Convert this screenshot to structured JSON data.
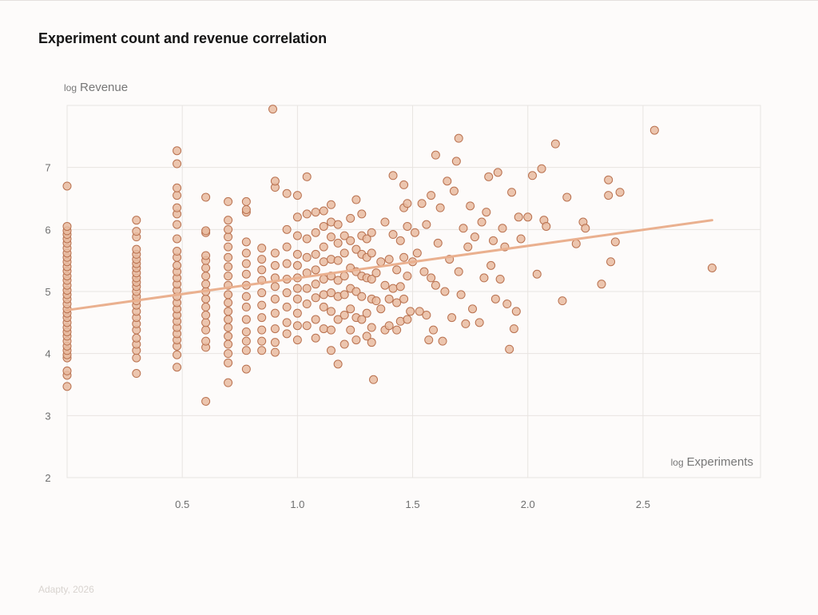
{
  "title": "Experiment count and revenue correlation",
  "footer": "Adapty, 2026",
  "colors": {
    "point_fill": "#e9bba0",
    "point_stroke": "#b9714f",
    "trend": "#eab08f",
    "grid": "#e8e4e1"
  },
  "chart_data": {
    "type": "scatter",
    "title": "Experiment count and revenue correlation",
    "xlabel_prefix": "log",
    "xlabel": "Experiments",
    "ylabel_prefix": "log",
    "ylabel": "Revenue",
    "xlim": [
      0,
      3.0
    ],
    "ylim": [
      2,
      8
    ],
    "xticks": [
      "0.5",
      "1.0",
      "1.5",
      "2.0",
      "2.5"
    ],
    "xtick_values": [
      0.5,
      1.0,
      1.5,
      2.0,
      2.5
    ],
    "yticks": [
      "2",
      "3",
      "4",
      "5",
      "6",
      "7"
    ],
    "ytick_values": [
      2,
      3,
      4,
      5,
      6,
      7
    ],
    "grid": true,
    "trend_line": {
      "x": [
        0,
        2.8
      ],
      "y": [
        4.7,
        6.15
      ]
    },
    "points": [
      [
        0,
        3.47
      ],
      [
        0,
        3.65
      ],
      [
        0,
        3.72
      ],
      [
        0,
        3.93
      ],
      [
        0,
        3.98
      ],
      [
        0,
        4.05
      ],
      [
        0,
        4.12
      ],
      [
        0,
        4.2
      ],
      [
        0,
        4.28
      ],
      [
        0,
        4.35
      ],
      [
        0,
        4.42
      ],
      [
        0,
        4.5
      ],
      [
        0,
        4.58
      ],
      [
        0,
        4.65
      ],
      [
        0,
        4.72
      ],
      [
        0,
        4.8
      ],
      [
        0,
        4.88
      ],
      [
        0,
        4.95
      ],
      [
        0,
        5.02
      ],
      [
        0,
        5.1
      ],
      [
        0,
        5.18
      ],
      [
        0,
        5.25
      ],
      [
        0,
        5.33
      ],
      [
        0,
        5.4
      ],
      [
        0,
        5.48
      ],
      [
        0,
        5.55
      ],
      [
        0,
        5.62
      ],
      [
        0,
        5.7
      ],
      [
        0,
        5.78
      ],
      [
        0,
        5.85
      ],
      [
        0,
        5.92
      ],
      [
        0,
        5.98
      ],
      [
        0,
        6.05
      ],
      [
        0,
        6.7
      ],
      [
        0.301,
        3.68
      ],
      [
        0.301,
        3.93
      ],
      [
        0.301,
        4.05
      ],
      [
        0.301,
        4.15
      ],
      [
        0.301,
        4.25
      ],
      [
        0.301,
        4.38
      ],
      [
        0.301,
        4.48
      ],
      [
        0.301,
        4.58
      ],
      [
        0.301,
        4.68
      ],
      [
        0.301,
        4.78
      ],
      [
        0.301,
        4.85
      ],
      [
        0.301,
        4.92
      ],
      [
        0.301,
        5.0
      ],
      [
        0.301,
        5.08
      ],
      [
        0.301,
        5.15
      ],
      [
        0.301,
        5.22
      ],
      [
        0.301,
        5.3
      ],
      [
        0.301,
        5.38
      ],
      [
        0.301,
        5.45
      ],
      [
        0.301,
        5.52
      ],
      [
        0.301,
        5.6
      ],
      [
        0.301,
        5.68
      ],
      [
        0.301,
        5.88
      ],
      [
        0.301,
        5.97
      ],
      [
        0.301,
        6.15
      ],
      [
        0.477,
        3.78
      ],
      [
        0.477,
        3.98
      ],
      [
        0.477,
        4.12
      ],
      [
        0.477,
        4.22
      ],
      [
        0.477,
        4.32
      ],
      [
        0.477,
        4.42
      ],
      [
        0.477,
        4.52
      ],
      [
        0.477,
        4.62
      ],
      [
        0.477,
        4.72
      ],
      [
        0.477,
        4.82
      ],
      [
        0.477,
        4.92
      ],
      [
        0.477,
        5.02
      ],
      [
        0.477,
        5.12
      ],
      [
        0.477,
        5.22
      ],
      [
        0.477,
        5.32
      ],
      [
        0.477,
        5.42
      ],
      [
        0.477,
        5.55
      ],
      [
        0.477,
        5.65
      ],
      [
        0.477,
        5.85
      ],
      [
        0.477,
        6.08
      ],
      [
        0.477,
        6.25
      ],
      [
        0.477,
        6.35
      ],
      [
        0.477,
        6.55
      ],
      [
        0.477,
        6.67
      ],
      [
        0.477,
        7.06
      ],
      [
        0.477,
        7.27
      ],
      [
        0.602,
        3.23
      ],
      [
        0.602,
        4.1
      ],
      [
        0.602,
        4.2
      ],
      [
        0.602,
        4.38
      ],
      [
        0.602,
        4.5
      ],
      [
        0.602,
        4.62
      ],
      [
        0.602,
        4.75
      ],
      [
        0.602,
        4.88
      ],
      [
        0.602,
        5.0
      ],
      [
        0.602,
        5.12
      ],
      [
        0.602,
        5.25
      ],
      [
        0.602,
        5.38
      ],
      [
        0.602,
        5.5
      ],
      [
        0.602,
        5.58
      ],
      [
        0.602,
        5.95
      ],
      [
        0.602,
        5.98
      ],
      [
        0.602,
        6.52
      ],
      [
        0.699,
        3.53
      ],
      [
        0.699,
        3.85
      ],
      [
        0.699,
        4.0
      ],
      [
        0.699,
        4.15
      ],
      [
        0.699,
        4.28
      ],
      [
        0.699,
        4.42
      ],
      [
        0.699,
        4.55
      ],
      [
        0.699,
        4.68
      ],
      [
        0.699,
        4.82
      ],
      [
        0.699,
        4.95
      ],
      [
        0.699,
        5.1
      ],
      [
        0.699,
        5.25
      ],
      [
        0.699,
        5.4
      ],
      [
        0.699,
        5.55
      ],
      [
        0.699,
        5.72
      ],
      [
        0.699,
        5.88
      ],
      [
        0.699,
        6.0
      ],
      [
        0.699,
        6.15
      ],
      [
        0.699,
        6.45
      ],
      [
        0.778,
        3.75
      ],
      [
        0.778,
        4.05
      ],
      [
        0.778,
        4.2
      ],
      [
        0.778,
        4.35
      ],
      [
        0.778,
        4.55
      ],
      [
        0.778,
        4.75
      ],
      [
        0.778,
        4.92
      ],
      [
        0.778,
        5.1
      ],
      [
        0.778,
        5.28
      ],
      [
        0.778,
        5.45
      ],
      [
        0.778,
        5.62
      ],
      [
        0.778,
        5.8
      ],
      [
        0.778,
        6.28
      ],
      [
        0.778,
        6.32
      ],
      [
        0.778,
        6.45
      ],
      [
        0.845,
        4.05
      ],
      [
        0.845,
        4.2
      ],
      [
        0.845,
        4.38
      ],
      [
        0.845,
        4.58
      ],
      [
        0.845,
        4.78
      ],
      [
        0.845,
        4.98
      ],
      [
        0.845,
        5.18
      ],
      [
        0.845,
        5.35
      ],
      [
        0.845,
        5.52
      ],
      [
        0.845,
        5.7
      ],
      [
        0.903,
        4.02
      ],
      [
        0.903,
        4.18
      ],
      [
        0.903,
        4.4
      ],
      [
        0.903,
        4.65
      ],
      [
        0.903,
        4.88
      ],
      [
        0.903,
        5.08
      ],
      [
        0.903,
        5.22
      ],
      [
        0.903,
        5.42
      ],
      [
        0.903,
        5.62
      ],
      [
        0.903,
        6.68
      ],
      [
        0.903,
        6.78
      ],
      [
        0.893,
        7.94
      ],
      [
        0.954,
        4.32
      ],
      [
        0.954,
        4.5
      ],
      [
        0.954,
        4.75
      ],
      [
        0.954,
        4.98
      ],
      [
        0.954,
        5.2
      ],
      [
        0.954,
        5.45
      ],
      [
        0.954,
        5.72
      ],
      [
        0.954,
        6.0
      ],
      [
        0.954,
        6.58
      ],
      [
        1.0,
        4.22
      ],
      [
        1.0,
        4.45
      ],
      [
        1.0,
        4.65
      ],
      [
        1.0,
        4.88
      ],
      [
        1.0,
        5.05
      ],
      [
        1.0,
        5.22
      ],
      [
        1.0,
        5.42
      ],
      [
        1.0,
        5.6
      ],
      [
        1.0,
        5.9
      ],
      [
        1.0,
        6.2
      ],
      [
        1.0,
        6.55
      ],
      [
        1.041,
        4.45
      ],
      [
        1.041,
        4.8
      ],
      [
        1.041,
        5.05
      ],
      [
        1.041,
        5.3
      ],
      [
        1.041,
        5.55
      ],
      [
        1.041,
        5.85
      ],
      [
        1.041,
        6.25
      ],
      [
        1.041,
        6.85
      ],
      [
        1.079,
        4.25
      ],
      [
        1.079,
        4.55
      ],
      [
        1.079,
        4.9
      ],
      [
        1.079,
        5.12
      ],
      [
        1.079,
        5.35
      ],
      [
        1.079,
        5.6
      ],
      [
        1.079,
        5.95
      ],
      [
        1.079,
        6.28
      ],
      [
        1.114,
        4.4
      ],
      [
        1.114,
        4.75
      ],
      [
        1.114,
        4.95
      ],
      [
        1.114,
        5.2
      ],
      [
        1.114,
        5.48
      ],
      [
        1.114,
        5.72
      ],
      [
        1.114,
        6.05
      ],
      [
        1.114,
        6.3
      ],
      [
        1.146,
        4.05
      ],
      [
        1.146,
        4.38
      ],
      [
        1.146,
        4.68
      ],
      [
        1.146,
        4.98
      ],
      [
        1.146,
        5.25
      ],
      [
        1.146,
        5.52
      ],
      [
        1.146,
        5.88
      ],
      [
        1.146,
        6.12
      ],
      [
        1.146,
        6.4
      ],
      [
        1.176,
        3.83
      ],
      [
        1.176,
        4.55
      ],
      [
        1.176,
        4.92
      ],
      [
        1.176,
        5.18
      ],
      [
        1.176,
        5.5
      ],
      [
        1.176,
        5.78
      ],
      [
        1.176,
        6.08
      ],
      [
        1.204,
        4.15
      ],
      [
        1.204,
        4.62
      ],
      [
        1.204,
        4.95
      ],
      [
        1.204,
        5.25
      ],
      [
        1.204,
        5.62
      ],
      [
        1.204,
        5.9
      ],
      [
        1.23,
        4.38
      ],
      [
        1.23,
        4.72
      ],
      [
        1.23,
        5.05
      ],
      [
        1.23,
        5.38
      ],
      [
        1.23,
        5.82
      ],
      [
        1.23,
        6.18
      ],
      [
        1.255,
        4.22
      ],
      [
        1.255,
        4.58
      ],
      [
        1.255,
        5.0
      ],
      [
        1.255,
        5.32
      ],
      [
        1.255,
        5.68
      ],
      [
        1.255,
        6.48
      ],
      [
        1.279,
        4.55
      ],
      [
        1.279,
        4.92
      ],
      [
        1.279,
        5.25
      ],
      [
        1.279,
        5.6
      ],
      [
        1.279,
        5.9
      ],
      [
        1.279,
        6.25
      ],
      [
        1.301,
        4.28
      ],
      [
        1.301,
        4.65
      ],
      [
        1.301,
        5.22
      ],
      [
        1.301,
        5.55
      ],
      [
        1.301,
        5.85
      ],
      [
        1.322,
        4.18
      ],
      [
        1.322,
        4.42
      ],
      [
        1.322,
        4.88
      ],
      [
        1.322,
        5.2
      ],
      [
        1.322,
        5.62
      ],
      [
        1.322,
        5.95
      ],
      [
        1.33,
        3.58
      ],
      [
        1.342,
        4.85
      ],
      [
        1.342,
        5.3
      ],
      [
        1.362,
        4.72
      ],
      [
        1.362,
        5.48
      ],
      [
        1.38,
        4.38
      ],
      [
        1.38,
        5.1
      ],
      [
        1.38,
        6.12
      ],
      [
        1.398,
        4.45
      ],
      [
        1.398,
        4.88
      ],
      [
        1.398,
        5.52
      ],
      [
        1.415,
        5.05
      ],
      [
        1.415,
        5.92
      ],
      [
        1.415,
        6.87
      ],
      [
        1.431,
        4.38
      ],
      [
        1.431,
        4.82
      ],
      [
        1.431,
        5.35
      ],
      [
        1.447,
        4.52
      ],
      [
        1.447,
        5.08
      ],
      [
        1.447,
        5.82
      ],
      [
        1.462,
        4.88
      ],
      [
        1.462,
        5.55
      ],
      [
        1.462,
        6.35
      ],
      [
        1.462,
        6.72
      ],
      [
        1.477,
        4.55
      ],
      [
        1.477,
        5.25
      ],
      [
        1.477,
        6.05
      ],
      [
        1.477,
        6.42
      ],
      [
        1.49,
        4.68
      ],
      [
        1.5,
        5.48
      ],
      [
        1.51,
        5.95
      ],
      [
        1.52,
        5.62
      ],
      [
        1.53,
        4.68
      ],
      [
        1.54,
        6.42
      ],
      [
        1.55,
        5.32
      ],
      [
        1.56,
        4.62
      ],
      [
        1.56,
        6.08
      ],
      [
        1.57,
        4.22
      ],
      [
        1.58,
        5.22
      ],
      [
        1.58,
        6.55
      ],
      [
        1.59,
        4.38
      ],
      [
        1.6,
        5.1
      ],
      [
        1.61,
        5.78
      ],
      [
        1.6,
        7.2
      ],
      [
        1.62,
        6.35
      ],
      [
        1.63,
        4.2
      ],
      [
        1.64,
        5.0
      ],
      [
        1.65,
        6.78
      ],
      [
        1.66,
        5.52
      ],
      [
        1.67,
        4.58
      ],
      [
        1.68,
        6.62
      ],
      [
        1.69,
        7.1
      ],
      [
        1.7,
        7.47
      ],
      [
        1.7,
        5.32
      ],
      [
        1.71,
        4.95
      ],
      [
        1.72,
        6.02
      ],
      [
        1.73,
        4.48
      ],
      [
        1.74,
        5.72
      ],
      [
        1.75,
        6.38
      ],
      [
        1.76,
        4.72
      ],
      [
        1.77,
        5.88
      ],
      [
        1.79,
        4.5
      ],
      [
        1.8,
        6.12
      ],
      [
        1.81,
        5.22
      ],
      [
        1.82,
        6.28
      ],
      [
        1.83,
        6.85
      ],
      [
        1.84,
        5.42
      ],
      [
        1.85,
        5.82
      ],
      [
        1.86,
        4.88
      ],
      [
        1.87,
        6.92
      ],
      [
        1.88,
        5.2
      ],
      [
        1.89,
        6.02
      ],
      [
        1.9,
        5.72
      ],
      [
        1.91,
        4.8
      ],
      [
        1.92,
        4.07
      ],
      [
        1.93,
        6.6
      ],
      [
        1.94,
        4.4
      ],
      [
        1.95,
        4.68
      ],
      [
        1.96,
        6.2
      ],
      [
        1.97,
        5.85
      ],
      [
        2.0,
        6.2
      ],
      [
        2.02,
        6.87
      ],
      [
        2.04,
        5.28
      ],
      [
        2.06,
        6.98
      ],
      [
        2.07,
        6.15
      ],
      [
        2.08,
        6.05
      ],
      [
        2.12,
        7.38
      ],
      [
        2.15,
        4.85
      ],
      [
        2.17,
        6.52
      ],
      [
        2.21,
        5.77
      ],
      [
        2.24,
        6.12
      ],
      [
        2.25,
        6.02
      ],
      [
        2.32,
        5.12
      ],
      [
        2.35,
        6.8
      ],
      [
        2.35,
        6.55
      ],
      [
        2.36,
        5.48
      ],
      [
        2.38,
        5.8
      ],
      [
        2.4,
        6.6
      ],
      [
        2.55,
        7.6
      ],
      [
        2.8,
        5.38
      ]
    ]
  }
}
